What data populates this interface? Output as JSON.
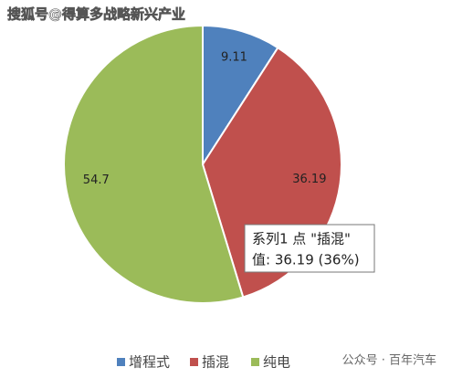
{
  "chart_data": {
    "type": "pie",
    "categories": [
      "增程式",
      "插混",
      "纯电"
    ],
    "values": [
      9.11,
      36.19,
      54.7
    ],
    "colors": [
      "#4f81bd",
      "#c0504d",
      "#9bbb59"
    ],
    "legend": "bottom"
  },
  "watermark": "搜狐号@得算多战略新兴产业",
  "footer": "公众号 · 百年汽车",
  "tooltip": {
    "line1": "系列1 点 \"插混\"",
    "line2": "值: 36.19 (36%)"
  }
}
